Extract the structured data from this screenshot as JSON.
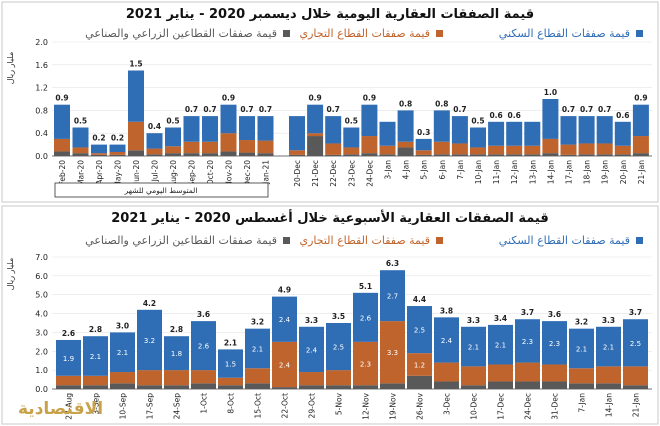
{
  "colors": {
    "residential": "#2f6db5",
    "commercial": "#c0642d",
    "agri_industrial": "#595959",
    "gold": "#c8a24a"
  },
  "logo_text": "الاقتصادية",
  "chart_data": [
    {
      "type": "bar",
      "title": "قيمة الصفقات العقارية اليومية خلال ديسمبر 2020 - يناير 2021",
      "unit_label": "مليار ريال",
      "legend": {
        "residential": "قيمة صفقات القطاع السكني",
        "commercial": "قيمة صفقات القطاع التجاري",
        "agri_industrial": "قيمة صفقات القطاعين الزراعي والصناعي"
      },
      "ylim": [
        0,
        2.0
      ],
      "yticks": [
        "0.0",
        "0.4",
        "0.8",
        "1.2",
        "1.6",
        "2.0"
      ],
      "monthly_note": "المتوسط اليومي للشهر",
      "monthly": {
        "categories": [
          "Feb-20",
          "Mar-20",
          "Apr-20",
          "May-20",
          "Jun-20",
          "Jul-20",
          "Aug-20",
          "Sep-20",
          "Oct-20",
          "Nov-20",
          "Dec-20",
          "Jan-21"
        ],
        "totals": [
          0.9,
          0.5,
          0.2,
          0.2,
          1.5,
          0.4,
          0.5,
          0.7,
          0.7,
          0.9,
          0.7,
          0.7
        ],
        "total_labels": [
          "0.9",
          "0.5",
          "0.2",
          "0.2",
          "1.5",
          "0.4",
          "0.5",
          "0.7",
          "0.7",
          "0.9",
          "0.7",
          "0.7"
        ],
        "residential": [
          0.6,
          0.35,
          0.15,
          0.13,
          0.9,
          0.27,
          0.33,
          0.45,
          0.45,
          0.5,
          0.42,
          0.43
        ],
        "commercial": [
          0.22,
          0.1,
          0.03,
          0.05,
          0.5,
          0.1,
          0.12,
          0.2,
          0.2,
          0.32,
          0.22,
          0.22
        ],
        "agri_industrial": [
          0.08,
          0.05,
          0.02,
          0.02,
          0.1,
          0.03,
          0.05,
          0.05,
          0.05,
          0.08,
          0.06,
          0.05
        ]
      },
      "daily": {
        "tick_labels": [
          "20-Dec",
          "21-Dec",
          "22-Dec",
          "23-Dec",
          "24-Dec",
          "3-Jan",
          "4-Jan",
          "5-Jan",
          "6-Jan",
          "7-Jan",
          "10-Jan",
          "11-Jan",
          "12-Jan",
          "13-Jan",
          "14-Jan",
          "17-Jan",
          "18-Jan",
          "19-Jan",
          "20-Jan",
          "21-Jan"
        ],
        "totals": [
          0.7,
          0.9,
          0.7,
          0.5,
          0.9,
          0.6,
          0.8,
          0.3,
          0.8,
          0.7,
          0.5,
          0.6,
          0.6,
          0.6,
          1.0,
          0.7,
          0.7,
          0.7,
          0.6,
          0.9
        ],
        "total_labels": [
          "",
          "0.9",
          "0.7",
          "0.5",
          "0.9",
          "",
          "0.8",
          "0.3",
          "0.8",
          "0.7",
          "0.5",
          "0.6",
          "0.6",
          "",
          "1.0",
          "0.7",
          "0.7",
          "0.7",
          "0.6",
          "0.9"
        ],
        "residential": [
          0.6,
          0.5,
          0.48,
          0.35,
          0.55,
          0.42,
          0.55,
          0.2,
          0.55,
          0.48,
          0.35,
          0.42,
          0.42,
          0.42,
          0.7,
          0.5,
          0.48,
          0.48,
          0.42,
          0.55
        ],
        "commercial": [
          0.08,
          0.05,
          0.2,
          0.12,
          0.3,
          0.15,
          0.1,
          0.08,
          0.22,
          0.19,
          0.12,
          0.15,
          0.15,
          0.15,
          0.25,
          0.18,
          0.19,
          0.19,
          0.15,
          0.3
        ],
        "agri_industrial": [
          0.02,
          0.35,
          0.02,
          0.03,
          0.05,
          0.03,
          0.15,
          0.02,
          0.03,
          0.03,
          0.03,
          0.03,
          0.03,
          0.03,
          0.05,
          0.02,
          0.03,
          0.03,
          0.03,
          0.05
        ]
      }
    },
    {
      "type": "bar",
      "title": "قيمة الصفقات العقارية الأسبوعية خلال أغسطس 2020 - يناير 2021",
      "unit_label": "مليار ريال",
      "legend": {
        "residential": "قيمة صفقات القطاع السكني",
        "commercial": "قيمة صفقات القطاع التجاري",
        "agri_industrial": "قيمة صفقات القطاعين الزراعي والصناعي"
      },
      "ylim": [
        0,
        7.0
      ],
      "yticks": [
        "0.0",
        "1.0",
        "2.0",
        "3.0",
        "4.0",
        "5.0",
        "6.0",
        "7.0"
      ],
      "categories": [
        "27-Aug",
        "3-Sep",
        "10-Sep",
        "17-Sep",
        "24-Sep",
        "1-Oct",
        "8-Oct",
        "15-Oct",
        "22-Oct",
        "29-Oct",
        "5-Nov",
        "12-Nov",
        "19-Nov",
        "26-Nov",
        "3-Dec",
        "10-Dec",
        "17-Dec",
        "24-Dec",
        "31-Dec",
        "7-Jan",
        "14-Jan",
        "21-Jan"
      ],
      "totals": [
        2.6,
        2.8,
        3.0,
        4.2,
        2.8,
        3.6,
        2.1,
        3.2,
        4.9,
        3.3,
        3.5,
        5.1,
        6.3,
        4.4,
        3.8,
        3.3,
        3.4,
        3.7,
        3.6,
        3.2,
        3.3,
        3.7
      ],
      "total_labels": [
        "2.6",
        "2.8",
        "3.0",
        "4.2",
        "2.8",
        "3.6",
        "2.1",
        "3.2",
        "4.9",
        "3.3",
        "3.5",
        "5.1",
        "6.3",
        "4.4",
        "3.8",
        "3.3",
        "3.4",
        "3.7",
        "3.6",
        "3.2",
        "3.3",
        "3.7"
      ],
      "residential": [
        1.9,
        2.1,
        2.1,
        3.2,
        1.8,
        2.6,
        1.5,
        2.1,
        2.4,
        2.4,
        2.5,
        2.6,
        2.7,
        2.5,
        2.4,
        2.1,
        2.1,
        2.3,
        2.3,
        2.1,
        2.1,
        2.5
      ],
      "residential_labels": [
        "1.9",
        "2.1",
        "2.1",
        "3.2",
        "1.8",
        "2.6",
        "1.5",
        "2.1",
        "2.4",
        "2.4",
        "2.5",
        "2.6",
        "2.7",
        "2.5",
        "2.4",
        "2.1",
        "2.1",
        "2.3",
        "2.3",
        "2.1",
        "2.1",
        "2.5"
      ],
      "commercial": [
        0.5,
        0.5,
        0.6,
        0.8,
        0.8,
        0.7,
        0.4,
        0.8,
        2.4,
        0.7,
        0.8,
        2.3,
        3.3,
        1.2,
        1.0,
        1.0,
        0.9,
        1.0,
        0.9,
        0.8,
        0.9,
        1.0
      ],
      "commercial_labels": [
        "",
        "",
        "",
        "",
        "",
        "",
        "",
        "",
        "2.4",
        "",
        "",
        "2.3",
        "3.3",
        "1.2",
        "",
        "",
        "",
        "",
        "",
        "",
        "",
        ""
      ],
      "agri_industrial": [
        0.2,
        0.2,
        0.3,
        0.2,
        0.2,
        0.3,
        0.2,
        0.3,
        0.1,
        0.2,
        0.2,
        0.2,
        0.3,
        0.7,
        0.4,
        0.2,
        0.4,
        0.4,
        0.4,
        0.3,
        0.3,
        0.2
      ]
    }
  ]
}
